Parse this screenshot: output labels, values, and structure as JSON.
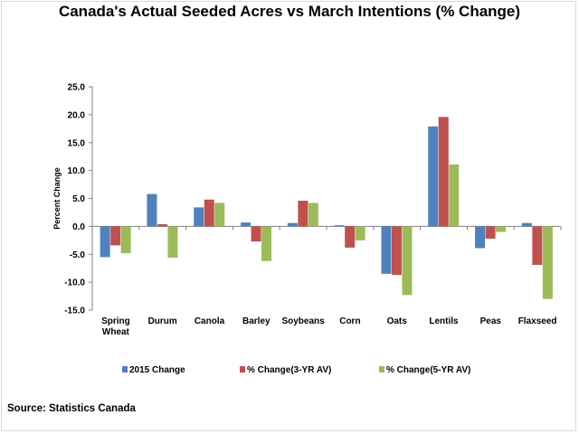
{
  "chart_data": {
    "type": "bar",
    "title": "Canada's Actual Seeded Acres vs March Intentions (% Change)",
    "xlabel": "",
    "ylabel": "Percent Change",
    "ylim": [
      -15,
      25
    ],
    "yticks": [
      "25.0",
      "20.0",
      "15.0",
      "10.0",
      "5.0",
      "0.0",
      "-5.0",
      "-10.0",
      "-15.0"
    ],
    "ytick_values": [
      25,
      20,
      15,
      10,
      5,
      0,
      -5,
      -10,
      -15
    ],
    "categories": [
      [
        "Spring",
        "Wheat"
      ],
      [
        "Durum"
      ],
      [
        "Canola"
      ],
      [
        "Barley"
      ],
      [
        "Soybeans"
      ],
      [
        "Corn"
      ],
      [
        "Oats"
      ],
      [
        "Lentils"
      ],
      [
        "Peas"
      ],
      [
        "Flaxseed"
      ]
    ],
    "series": [
      {
        "name": "2015 Change",
        "color": "#4f81bd",
        "values": [
          -5.5,
          5.8,
          3.4,
          0.7,
          0.6,
          0.2,
          -8.5,
          17.9,
          -3.9,
          0.6
        ]
      },
      {
        "name": "% Change(3-YR AV)",
        "color": "#c0504d",
        "values": [
          -3.4,
          0.4,
          4.8,
          -2.7,
          4.6,
          -3.8,
          -8.7,
          19.6,
          -2.2,
          -6.9
        ]
      },
      {
        "name": "% Change(5-YR AV)",
        "color": "#9bbb59",
        "values": [
          -4.8,
          -5.6,
          4.2,
          -6.2,
          4.2,
          -2.5,
          -12.3,
          11.1,
          -1.0,
          -13.0
        ]
      }
    ],
    "grid": false,
    "legend_position": "bottom"
  },
  "source": "Source: Statistics Canada"
}
